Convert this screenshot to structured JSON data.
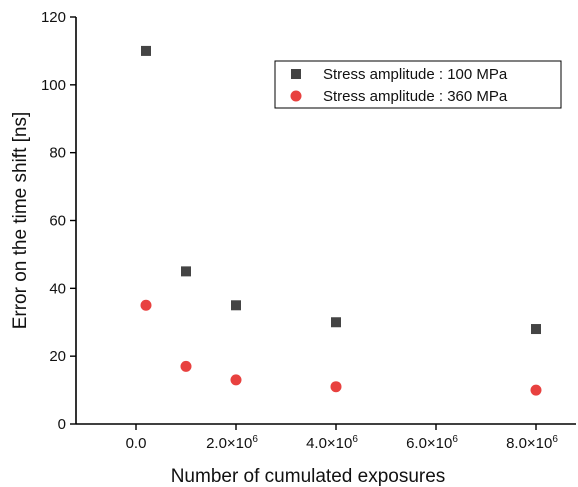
{
  "chart_data": {
    "type": "scatter",
    "xlabel": "Number of cumulated exposures",
    "ylabel": "Error on the time shift [ns]",
    "xlim": [
      -1200000,
      8800000
    ],
    "ylim": [
      0,
      120
    ],
    "x_ticks": [
      {
        "value": 0,
        "label": "0.0",
        "exp": ""
      },
      {
        "value": 2000000,
        "label": "2.0×10",
        "exp": "6"
      },
      {
        "value": 4000000,
        "label": "4.0×10",
        "exp": "6"
      },
      {
        "value": 6000000,
        "label": "6.0×10",
        "exp": "6"
      },
      {
        "value": 8000000,
        "label": "8.0×10",
        "exp": "6"
      }
    ],
    "y_ticks": [
      0,
      20,
      40,
      60,
      80,
      100,
      120
    ],
    "legend_position": "top-right",
    "grid": false,
    "series": [
      {
        "name": "Stress amplitude : 100 MPa",
        "marker": "square",
        "color": "#444444",
        "points": [
          {
            "x": 200000,
            "y": 110
          },
          {
            "x": 1000000,
            "y": 45
          },
          {
            "x": 2000000,
            "y": 35
          },
          {
            "x": 4000000,
            "y": 30
          },
          {
            "x": 8000000,
            "y": 28
          }
        ]
      },
      {
        "name": "Stress amplitude : 360 MPa",
        "marker": "circle",
        "color": "#e8413f",
        "points": [
          {
            "x": 200000,
            "y": 35
          },
          {
            "x": 1000000,
            "y": 17
          },
          {
            "x": 2000000,
            "y": 13
          },
          {
            "x": 4000000,
            "y": 11
          },
          {
            "x": 8000000,
            "y": 10
          }
        ]
      }
    ]
  }
}
